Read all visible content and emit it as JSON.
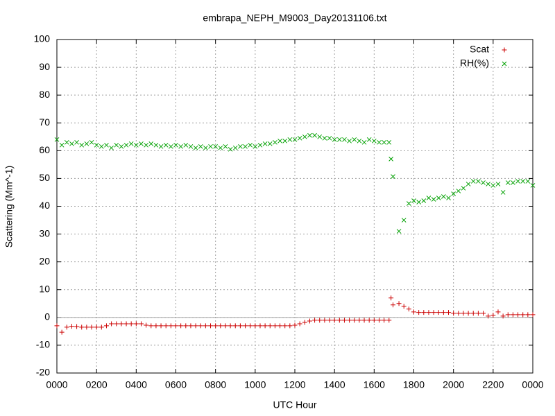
{
  "chart_data": {
    "type": "scatter",
    "title": "embrapa_NEPH_M9003_Day20131106.txt",
    "x_label": "UTC Hour",
    "y_label": "Scattering (Mm^-1)",
    "xlim": [
      0,
      24
    ],
    "ylim": [
      -20,
      100
    ],
    "xticks": [
      {
        "value": 0,
        "label": "0000"
      },
      {
        "value": 2,
        "label": "0200"
      },
      {
        "value": 4,
        "label": "0400"
      },
      {
        "value": 6,
        "label": "0600"
      },
      {
        "value": 8,
        "label": "0800"
      },
      {
        "value": 10,
        "label": "1000"
      },
      {
        "value": 12,
        "label": "1200"
      },
      {
        "value": 14,
        "label": "1400"
      },
      {
        "value": 16,
        "label": "1600"
      },
      {
        "value": 18,
        "label": "1800"
      },
      {
        "value": 20,
        "label": "2000"
      },
      {
        "value": 22,
        "label": "2200"
      },
      {
        "value": 24,
        "label": "0000"
      }
    ],
    "yticks": [
      -20,
      -10,
      0,
      10,
      20,
      30,
      40,
      50,
      60,
      70,
      80,
      90,
      100
    ],
    "grid": true,
    "zeroaxis": true,
    "legend": "top-right",
    "x": [
      0,
      0.25,
      0.5,
      0.75,
      1,
      1.25,
      1.5,
      1.75,
      2,
      2.25,
      2.5,
      2.75,
      3,
      3.25,
      3.5,
      3.75,
      4,
      4.25,
      4.5,
      4.75,
      5,
      5.25,
      5.5,
      5.75,
      6,
      6.25,
      6.5,
      6.75,
      7,
      7.25,
      7.5,
      7.75,
      8,
      8.25,
      8.5,
      8.75,
      9,
      9.25,
      9.5,
      9.75,
      10,
      10.25,
      10.5,
      10.75,
      11,
      11.25,
      11.5,
      11.75,
      12,
      12.25,
      12.5,
      12.75,
      13,
      13.25,
      13.5,
      13.75,
      14,
      14.25,
      14.5,
      14.75,
      15,
      15.25,
      15.5,
      15.75,
      16,
      16.25,
      16.5,
      16.75,
      16.85,
      16.95,
      17.25,
      17.5,
      17.75,
      18,
      18.25,
      18.5,
      18.75,
      19,
      19.25,
      19.5,
      19.75,
      20,
      20.25,
      20.5,
      20.75,
      21,
      21.25,
      21.5,
      21.75,
      22,
      22.25,
      22.5,
      22.75,
      23,
      23.25,
      23.5,
      23.75,
      24
    ],
    "series": [
      {
        "name": "Scat",
        "color": "#cc0000",
        "marker": "plus",
        "values": [
          -3,
          -5.3,
          -3.5,
          -3.2,
          -3.3,
          -3.5,
          -3.5,
          -3.5,
          -3.5,
          -3.5,
          -3,
          -2.3,
          -2.3,
          -2.3,
          -2.3,
          -2.3,
          -2.3,
          -2.3,
          -2.8,
          -3,
          -3,
          -3,
          -3,
          -3,
          -3,
          -3,
          -3,
          -3,
          -3,
          -3,
          -3,
          -3,
          -3,
          -3,
          -3,
          -3,
          -3,
          -3,
          -3,
          -3,
          -3,
          -3,
          -3,
          -3,
          -3,
          -3,
          -3,
          -3,
          -2.8,
          -2.3,
          -1.8,
          -1.3,
          -1,
          -1,
          -1,
          -1,
          -1,
          -1,
          -1,
          -1,
          -1,
          -1,
          -1,
          -1,
          -1,
          -1,
          -1,
          -1,
          7,
          4.5,
          5,
          4,
          3,
          2,
          1.8,
          1.8,
          1.8,
          1.8,
          1.8,
          1.8,
          1.8,
          1.5,
          1.5,
          1.5,
          1.5,
          1.5,
          1.5,
          1.5,
          0.5,
          0.8,
          2,
          0.5,
          1,
          1,
          1,
          1,
          1,
          1
        ]
      },
      {
        "name": "RH(%)",
        "color": "#00a000",
        "marker": "cross",
        "values": [
          64,
          62,
          63,
          62.5,
          63,
          62,
          62.5,
          63,
          62,
          61.5,
          62,
          61,
          62,
          61.5,
          62,
          62.5,
          62,
          62.5,
          62,
          62.5,
          62,
          61.5,
          62,
          61.5,
          62,
          61.5,
          62,
          61.5,
          61,
          61.5,
          61,
          61.5,
          61.5,
          61,
          61.5,
          60.5,
          61,
          61.5,
          61.5,
          62,
          61.5,
          62,
          62.5,
          62.5,
          63,
          63.5,
          63.5,
          64,
          64,
          64.5,
          65,
          65.5,
          65.5,
          65,
          64.5,
          64.5,
          64,
          64,
          64,
          63.5,
          64,
          63.5,
          63,
          64,
          63.5,
          63,
          63,
          63,
          57,
          50.7,
          31,
          35,
          41,
          42,
          41.5,
          42,
          43,
          42.5,
          43,
          43.5,
          43,
          44.5,
          45.5,
          46.5,
          48,
          49,
          49,
          48.5,
          48,
          47.5,
          48,
          45,
          48.5,
          48.5,
          49,
          49,
          49,
          47.5
        ]
      }
    ]
  }
}
